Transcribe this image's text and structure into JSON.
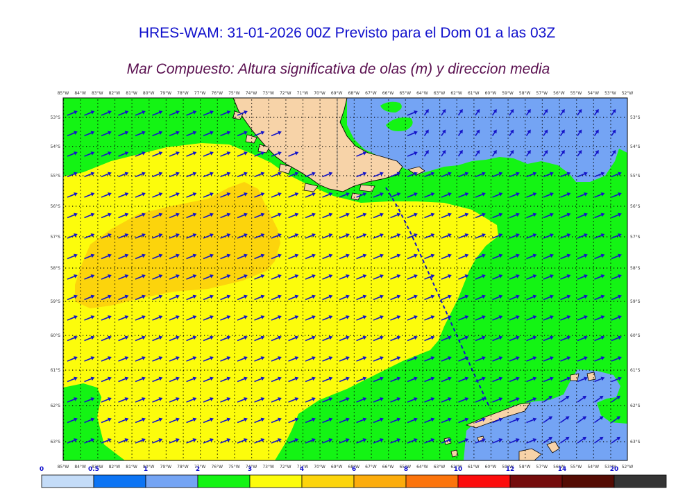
{
  "title": "HRES-WAM: 31-01-2026 00Z Previsto para el Dom 01 a las 03Z",
  "subtitle": "Mar Compuesto: Altura significativa de olas (m) y direccion media",
  "colors": {
    "title": "#1010cc",
    "subtitle": "#5a1050",
    "land": "#f7d3a8",
    "vector": "#1414c8",
    "grid_dots": "#000000",
    "boundary_line": "#1414c8"
  },
  "lon_labels": [
    "85°W",
    "84°W",
    "83°W",
    "82°W",
    "81°W",
    "80°W",
    "79°W",
    "78°W",
    "77°W",
    "76°W",
    "75°W",
    "74°W",
    "73°W",
    "72°W",
    "71°W",
    "70°W",
    "69°W",
    "68°W",
    "67°W",
    "66°W",
    "65°W",
    "64°W",
    "63°W",
    "62°W",
    "61°W",
    "60°W",
    "59°W",
    "58°W",
    "57°W",
    "56°W",
    "55°W",
    "54°W",
    "53°W",
    "52°W"
  ],
  "lat_labels": [
    "53°S",
    "54°S",
    "55°S",
    "56°S",
    "57°S",
    "58°S",
    "59°S",
    "60°S",
    "61°S",
    "62°S",
    "63°S"
  ],
  "colorbar": {
    "labels": [
      "0",
      "0.5",
      "1",
      "2",
      "3",
      "4",
      "6",
      "8",
      "10",
      "12",
      "14",
      "20"
    ],
    "colors": [
      "#c4dcf8",
      "#0c74f4",
      "#74a4f4",
      "#14f414",
      "#fcfc0c",
      "#fcd40c",
      "#fcac0c",
      "#fc740c",
      "#fc0c0c",
      "#740c0c",
      "#540c04",
      "#343434"
    ]
  },
  "legend": {
    "levels_m": [
      0,
      0.5,
      1,
      2,
      3,
      4,
      6,
      8,
      10,
      12,
      14,
      20
    ]
  },
  "wave_field": {
    "units": "m",
    "regions": [
      {
        "class": "1-2 m",
        "color": "#74a4f4"
      },
      {
        "class": "2-3 m",
        "color": "#14f414"
      },
      {
        "class": "3-4 m",
        "color": "#fcfc0c"
      },
      {
        "class": "4-6 m",
        "color": "#fcd40c"
      }
    ]
  }
}
